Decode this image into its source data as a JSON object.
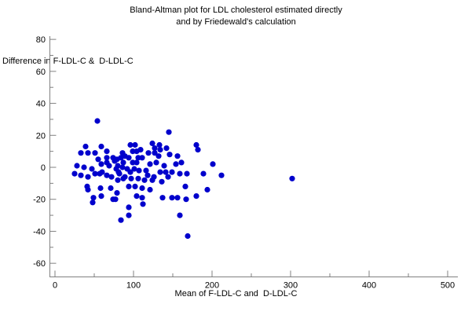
{
  "figure": {
    "background_color": "#ffffff"
  },
  "chart_data": {
    "type": "scatter",
    "title_line1": "Bland-Altman plot for LDL cholesterol estimated directly",
    "title_line2": "and by Friedewald's calculation",
    "xlabel": "Mean of F-LDL-C and  D-LDL-C",
    "ylabel": "Difference in F-LDL-C &  D-LDL-C",
    "xlim": [
      0,
      500
    ],
    "ylim": [
      -60,
      80
    ],
    "x_ticks": [
      0,
      100,
      200,
      300,
      400,
      500
    ],
    "x_minor_ticks": [
      50,
      150,
      250,
      350,
      450
    ],
    "y_ticks": [
      80,
      60,
      40,
      20,
      0,
      -20,
      -40,
      -60
    ],
    "y_minor_ticks": [
      70,
      50,
      30,
      10,
      -10,
      -30,
      -50
    ],
    "grid": false,
    "legend": false,
    "point_color": "#0000cc",
    "axis_color": "#808080",
    "text_color": "#000000",
    "points": [
      [
        54,
        29
      ],
      [
        145,
        22
      ],
      [
        39,
        13
      ],
      [
        59,
        13
      ],
      [
        96,
        14
      ],
      [
        102,
        14
      ],
      [
        124,
        15
      ],
      [
        127,
        12
      ],
      [
        133,
        14
      ],
      [
        134,
        11
      ],
      [
        142,
        12
      ],
      [
        180,
        14
      ],
      [
        182,
        11
      ],
      [
        33,
        9
      ],
      [
        42,
        9
      ],
      [
        51,
        9
      ],
      [
        66,
        10
      ],
      [
        86,
        9
      ],
      [
        99,
        10
      ],
      [
        104,
        10
      ],
      [
        109,
        11
      ],
      [
        119,
        9
      ],
      [
        127,
        9
      ],
      [
        132,
        7
      ],
      [
        146,
        8
      ],
      [
        55,
        5
      ],
      [
        66,
        6
      ],
      [
        74,
        6
      ],
      [
        76,
        4
      ],
      [
        79,
        5
      ],
      [
        84,
        6
      ],
      [
        89,
        7
      ],
      [
        94,
        6
      ],
      [
        106,
        6
      ],
      [
        111,
        6
      ],
      [
        156,
        7
      ],
      [
        59,
        2
      ],
      [
        66,
        3
      ],
      [
        87,
        3
      ],
      [
        99,
        3
      ],
      [
        104,
        3
      ],
      [
        121,
        2
      ],
      [
        129,
        3
      ],
      [
        154,
        2
      ],
      [
        161,
        3
      ],
      [
        201,
        2
      ],
      [
        28,
        1
      ],
      [
        37,
        0
      ],
      [
        69,
        1
      ],
      [
        80,
        1
      ],
      [
        86,
        0
      ],
      [
        139,
        1
      ],
      [
        47,
        -1
      ],
      [
        60,
        -3
      ],
      [
        78,
        -1
      ],
      [
        81,
        -3
      ],
      [
        92,
        -1
      ],
      [
        96,
        -3
      ],
      [
        101,
        -1
      ],
      [
        107,
        -2
      ],
      [
        116,
        -2
      ],
      [
        134,
        -3
      ],
      [
        141,
        -3
      ],
      [
        149,
        -3
      ],
      [
        159,
        -4
      ],
      [
        25,
        -4
      ],
      [
        33,
        -5
      ],
      [
        42,
        -6
      ],
      [
        51,
        -4
      ],
      [
        57,
        -4
      ],
      [
        66,
        -5
      ],
      [
        72,
        -6
      ],
      [
        82,
        -4
      ],
      [
        89,
        -6
      ],
      [
        118,
        -5
      ],
      [
        126,
        -6
      ],
      [
        144,
        -6
      ],
      [
        168,
        -4
      ],
      [
        189,
        -4
      ],
      [
        212,
        -5
      ],
      [
        302,
        -7
      ],
      [
        80,
        -8
      ],
      [
        87,
        -7
      ],
      [
        97,
        -7
      ],
      [
        106,
        -7
      ],
      [
        114,
        -8
      ],
      [
        124,
        -8
      ],
      [
        136,
        -9
      ],
      [
        41,
        -12
      ],
      [
        42,
        -14
      ],
      [
        58,
        -13
      ],
      [
        71,
        -13
      ],
      [
        94,
        -12
      ],
      [
        102,
        -12
      ],
      [
        111,
        -13
      ],
      [
        121,
        -14
      ],
      [
        166,
        -12
      ],
      [
        194,
        -14
      ],
      [
        49,
        -19
      ],
      [
        59,
        -18
      ],
      [
        74,
        -20
      ],
      [
        77,
        -20
      ],
      [
        79,
        -16
      ],
      [
        104,
        -18
      ],
      [
        111,
        -19
      ],
      [
        137,
        -19
      ],
      [
        149,
        -19
      ],
      [
        156,
        -19
      ],
      [
        167,
        -20
      ],
      [
        180,
        -18
      ],
      [
        48,
        -22
      ],
      [
        94,
        -25
      ],
      [
        112,
        -23
      ],
      [
        84,
        -33
      ],
      [
        94,
        -30
      ],
      [
        159,
        -30
      ],
      [
        169,
        -43
      ]
    ]
  }
}
